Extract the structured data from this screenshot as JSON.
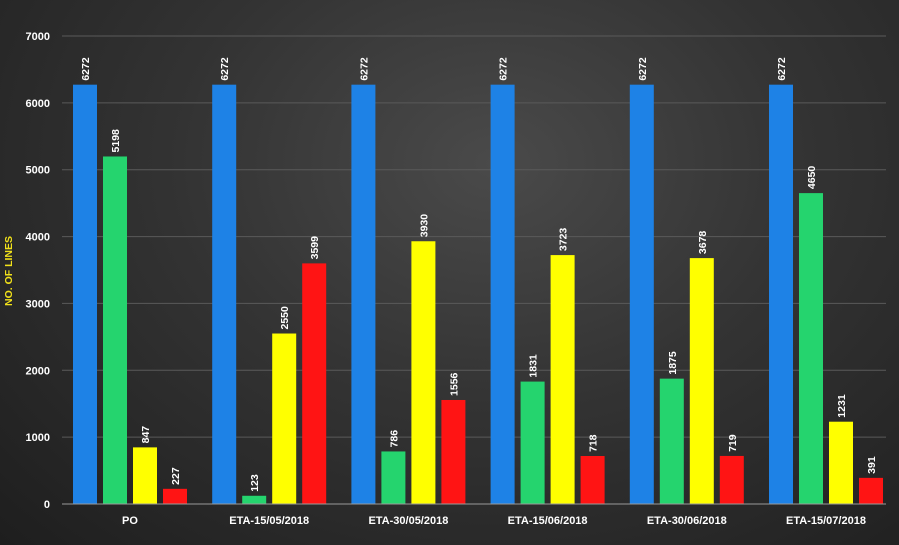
{
  "chart_data": {
    "type": "bar",
    "ylabel": "NO. OF LINES",
    "xlabel": "",
    "ylim": [
      0,
      7000
    ],
    "yticks": [
      "0",
      "1000",
      "2000",
      "3000",
      "4000",
      "5000",
      "6000",
      "7000"
    ],
    "grid": true,
    "categories": [
      "PO",
      "ETA-15/05/2018",
      "ETA-30/05/2018",
      "ETA-15/06/2018",
      "ETA-30/06/2018",
      "ETA-15/07/2018"
    ],
    "series": [
      {
        "color": "#1e82e6",
        "values": [
          6272,
          6272,
          6272,
          6272,
          6272,
          6272
        ]
      },
      {
        "color": "#25d46e",
        "values": [
          5198,
          123,
          786,
          1831,
          1875,
          4650
        ]
      },
      {
        "color": "#ffff00",
        "values": [
          847,
          2550,
          3930,
          3723,
          3678,
          1231
        ]
      },
      {
        "color": "#ff1414",
        "values": [
          227,
          3599,
          1556,
          718,
          719,
          391
        ]
      }
    ]
  }
}
